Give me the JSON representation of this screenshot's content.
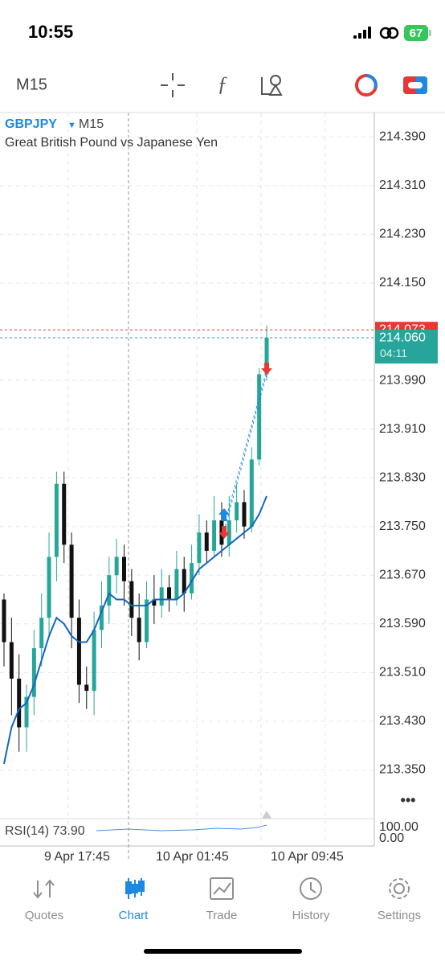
{
  "status_bar": {
    "time": "10:55",
    "battery": "67"
  },
  "toolbar": {
    "timeframe": "M15"
  },
  "chart": {
    "symbol": "GBPJPY",
    "timeframe": "M15",
    "description": "Great British Pound vs Japanese Yen",
    "ylim": [
      213.27,
      214.43
    ],
    "yticks": [
      {
        "value": 214.39,
        "label": "214.390"
      },
      {
        "value": 214.31,
        "label": "214.310"
      },
      {
        "value": 214.23,
        "label": "214.230"
      },
      {
        "value": 214.15,
        "label": "214.150"
      },
      {
        "value": 213.99,
        "label": "213.990"
      },
      {
        "value": 213.91,
        "label": "213.910"
      },
      {
        "value": 213.83,
        "label": "213.830"
      },
      {
        "value": 213.75,
        "label": "213.750"
      },
      {
        "value": 213.67,
        "label": "213.670"
      },
      {
        "value": 213.59,
        "label": "213.590"
      },
      {
        "value": 213.51,
        "label": "213.510"
      },
      {
        "value": 213.43,
        "label": "213.430"
      },
      {
        "value": 213.35,
        "label": "213.350"
      }
    ],
    "candles": {
      "open": [
        213.63,
        213.56,
        213.5,
        213.42,
        213.47,
        213.55,
        213.6,
        213.7,
        213.82,
        213.72,
        213.6,
        213.49,
        213.48,
        213.58,
        213.62,
        213.67,
        213.7,
        213.66,
        213.6,
        213.56,
        213.63,
        213.62,
        213.65,
        213.63,
        213.68,
        213.64,
        213.69,
        213.74,
        213.71,
        213.76,
        213.72,
        213.76,
        213.79,
        213.75,
        213.86,
        214.0
      ],
      "high": [
        213.64,
        213.6,
        213.54,
        213.49,
        213.58,
        213.64,
        213.74,
        213.84,
        213.84,
        213.74,
        213.63,
        213.52,
        213.61,
        213.66,
        213.7,
        213.73,
        213.72,
        213.68,
        213.64,
        213.66,
        213.67,
        213.68,
        213.67,
        213.71,
        213.7,
        213.72,
        213.77,
        213.76,
        213.8,
        213.79,
        213.8,
        213.82,
        213.81,
        213.88,
        214.01,
        214.08
      ],
      "low": [
        213.52,
        213.44,
        213.38,
        213.38,
        213.44,
        213.52,
        213.57,
        213.66,
        213.69,
        213.55,
        213.46,
        213.45,
        213.44,
        213.55,
        213.59,
        213.64,
        213.62,
        213.57,
        213.53,
        213.55,
        213.59,
        213.6,
        213.61,
        213.62,
        213.61,
        213.63,
        213.67,
        213.69,
        213.7,
        213.7,
        213.7,
        213.74,
        213.73,
        213.74,
        213.85,
        213.99
      ],
      "close": [
        213.56,
        213.5,
        213.42,
        213.47,
        213.55,
        213.6,
        213.7,
        213.82,
        213.72,
        213.6,
        213.49,
        213.48,
        213.58,
        213.62,
        213.67,
        213.7,
        213.66,
        213.6,
        213.56,
        213.63,
        213.62,
        213.65,
        213.63,
        213.68,
        213.64,
        213.69,
        213.74,
        213.71,
        213.76,
        213.72,
        213.76,
        213.79,
        213.75,
        213.86,
        214.0,
        214.06
      ]
    },
    "ma": [
      213.36,
      213.42,
      213.45,
      213.46,
      213.49,
      213.53,
      213.57,
      213.6,
      213.59,
      213.57,
      213.56,
      213.56,
      213.58,
      213.61,
      213.64,
      213.63,
      213.63,
      213.62,
      213.62,
      213.62,
      213.63,
      213.63,
      213.63,
      213.63,
      213.64,
      213.66,
      213.68,
      213.69,
      213.7,
      213.71,
      213.72,
      213.73,
      213.74,
      213.75,
      213.77,
      213.8
    ],
    "ask": {
      "value": 214.073,
      "label": "214.073"
    },
    "bid": {
      "value": 214.06,
      "label": "214.060"
    },
    "timer": "04:11",
    "time_labels": [
      "9 Apr 17:45",
      "10 Apr 01:45",
      "10 Apr 09:45"
    ],
    "rsi": {
      "label": "RSI(14) 73.90",
      "levels": [
        "100.00",
        "0.00"
      ]
    }
  },
  "tabs": [
    "Quotes",
    "Chart",
    "Trade",
    "History",
    "Settings"
  ]
}
